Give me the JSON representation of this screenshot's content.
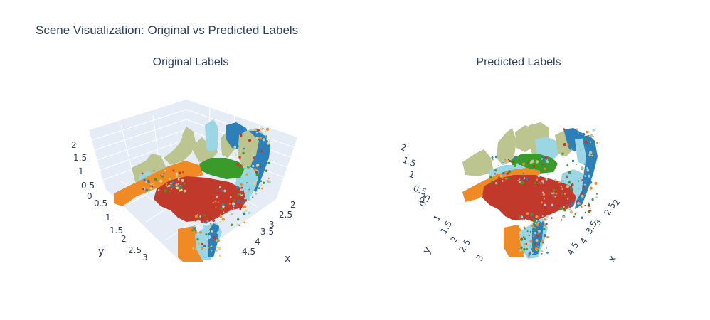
{
  "figure": {
    "title": "Scene Visualization: Original vs Predicted Labels"
  },
  "chart_data": [
    {
      "type": "scatter3d",
      "title": "Original Labels",
      "xlabel": "x",
      "ylabel": "y",
      "zlabel": "",
      "x_ticks": [
        "2",
        "2.5",
        "3",
        "3.5",
        "4",
        "4.5"
      ],
      "y_ticks": [
        "0.5",
        "1",
        "1.5",
        "2",
        "2.5",
        "3"
      ],
      "z_ticks": [
        "0",
        "0.5",
        "1",
        "1.5",
        "2"
      ],
      "grid": true,
      "series": [
        {
          "color": "#c0392b",
          "role": "floor"
        },
        {
          "color": "#f08a24",
          "role": "furniture"
        },
        {
          "color": "#bcc48f",
          "role": "wall"
        },
        {
          "color": "#9ad6e4",
          "role": "object"
        },
        {
          "color": "#2c7fb8",
          "role": "wall"
        },
        {
          "color": "#3a9b2a",
          "role": "object"
        },
        {
          "color": "#e3d58c",
          "role": "object"
        }
      ]
    },
    {
      "type": "scatter3d",
      "title": "Predicted Labels",
      "xlabel": "x",
      "ylabel": "y",
      "zlabel": "",
      "x_ticks": [
        "2",
        "2.5",
        "3",
        "3.5",
        "4",
        "4.5"
      ],
      "y_ticks": [
        "0.5",
        "1",
        "1.5",
        "2",
        "2.5",
        "3"
      ],
      "z_ticks": [
        "0",
        "0.5",
        "1",
        "1.5",
        "2"
      ],
      "grid": false,
      "series": [
        {
          "color": "#c0392b",
          "role": "floor"
        },
        {
          "color": "#f08a24",
          "role": "furniture"
        },
        {
          "color": "#bcc48f",
          "role": "wall"
        },
        {
          "color": "#9ad6e4",
          "role": "object"
        },
        {
          "color": "#2c7fb8",
          "role": "wall"
        },
        {
          "color": "#3a9b2a",
          "role": "object"
        }
      ]
    }
  ]
}
